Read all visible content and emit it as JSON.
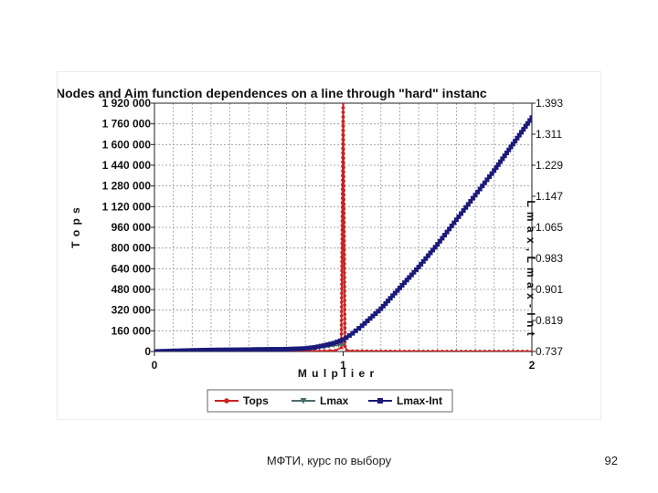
{
  "footer": {
    "text": "МФТИ, курс по выбору",
    "page_number": "92"
  },
  "chart_data": {
    "type": "line",
    "title": "Nodes and Aim function dependences on a line through \"hard\" instanc",
    "xlabel": "M u l p l i e r",
    "ylabel_left": "T o p s",
    "ylabel_right": "L m a x , L m a x - I n t",
    "x_ticks": [
      "0",
      "1",
      "2"
    ],
    "xlim": [
      0,
      2
    ],
    "left_axis": {
      "ylim": [
        0,
        1920000
      ],
      "tick_values": [
        0,
        160000,
        320000,
        480000,
        640000,
        800000,
        960000,
        1120000,
        1280000,
        1440000,
        1600000,
        1760000,
        1920000
      ],
      "tick_labels": [
        "0",
        "160 000",
        "320 000",
        "480 000",
        "640 000",
        "800 000",
        "960 000",
        "1 120 000",
        "1 280 000",
        "1 440 000",
        "1 600 000",
        "1 760 000",
        "1 920 000"
      ]
    },
    "right_axis": {
      "ylim": [
        0.737,
        1.393
      ],
      "tick_values": [
        0.737,
        0.819,
        0.901,
        0.983,
        1.065,
        1.147,
        1.229,
        1.311,
        1.393
      ],
      "tick_labels": [
        "0.737",
        "0.819",
        "0.901",
        "0.983",
        "1.065",
        "1.147",
        "1.229",
        "1.311",
        "1.393"
      ]
    },
    "legend": {
      "position": "bottom",
      "entries": [
        {
          "name": "Tops",
          "color": "#cc2222",
          "marker": "circle"
        },
        {
          "name": "Lmax",
          "color": "#4a6b6b",
          "marker": "triangle"
        },
        {
          "name": "Lmax-Int",
          "color": "#1a1a7a",
          "marker": "square"
        }
      ]
    },
    "series": [
      {
        "name": "Tops",
        "axis": "left",
        "color": "#cc2222",
        "x": [
          0,
          0.2,
          0.4,
          0.6,
          0.8,
          0.9,
          0.96,
          0.99,
          1.0,
          1.01,
          1.02,
          1.05,
          1.2,
          1.4,
          1.6,
          1.8,
          2.0
        ],
        "y": [
          0,
          0,
          0,
          0,
          2000,
          4000,
          8000,
          30000,
          1920000,
          40000,
          8000,
          4000,
          2000,
          1500,
          1000,
          1000,
          1000
        ]
      },
      {
        "name": "Lmax",
        "axis": "right",
        "color": "#4a6b6b",
        "x": [
          0,
          0.2,
          0.4,
          0.6,
          0.8,
          0.9,
          0.95,
          1.0
        ],
        "y": [
          0.737,
          0.7395,
          0.742,
          0.744,
          0.745,
          0.748,
          0.752,
          0.755
        ]
      },
      {
        "name": "Lmax-Int",
        "axis": "right",
        "color": "#1a1a7a",
        "x": [
          0,
          0.1,
          0.2,
          0.3,
          0.4,
          0.5,
          0.6,
          0.7,
          0.8,
          0.85,
          0.9,
          0.95,
          1.0,
          1.05,
          1.1,
          1.2,
          1.3,
          1.4,
          1.5,
          1.6,
          1.7,
          1.8,
          1.9,
          2.0
        ],
        "y": [
          0.737,
          0.7385,
          0.74,
          0.741,
          0.7415,
          0.742,
          0.7425,
          0.743,
          0.745,
          0.748,
          0.753,
          0.759,
          0.768,
          0.785,
          0.805,
          0.85,
          0.905,
          0.96,
          1.02,
          1.085,
          1.15,
          1.215,
          1.285,
          1.355
        ]
      }
    ]
  }
}
